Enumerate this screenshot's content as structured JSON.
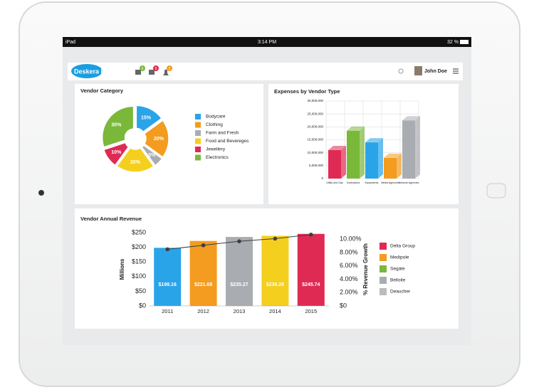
{
  "status_bar": {
    "device": "iPad",
    "time": "3:14 PM",
    "battery": "32 %"
  },
  "header": {
    "logo": "Deskera ERP",
    "badges": [
      "6",
      "5",
      "2"
    ],
    "user": "John Doe"
  },
  "chart_data": [
    {
      "type": "pie",
      "title": "Vendor Category",
      "categories": [
        "Bodycare",
        "Clothing",
        "Farm and Fresh",
        "Food and Bevereges",
        "Jewellery",
        "Electronics"
      ],
      "values": [
        15,
        20,
        5,
        20,
        10,
        30
      ],
      "value_labels": [
        "15%",
        "20%",
        "5%",
        "20%",
        "10%",
        "30%"
      ],
      "colors": [
        "#2aa4e8",
        "#f39c1f",
        "#a9adb2",
        "#f5cf1e",
        "#df2a54",
        "#7ab83a"
      ],
      "legend": "right"
    },
    {
      "type": "bar3d",
      "title": "Expenses by Vendor Type",
      "categories": [
        "Utility and Gas",
        "Contractors",
        "Equipments",
        "Media Agencies",
        "Network Agencies"
      ],
      "values": [
        11000000,
        18500000,
        14000000,
        8000000,
        22500000
      ],
      "colors": [
        "#df2a54",
        "#7ab83a",
        "#2aa4e8",
        "#f39c1f",
        "#a9adb2"
      ],
      "ylim": [
        0,
        30000000
      ],
      "yticks": [
        0,
        {
          "value": 5000000,
          "label": "5,000,000"
        },
        {
          "value": 10000000,
          "label": "10,000,000"
        },
        {
          "value": 15000000,
          "label": "15,000,000"
        },
        {
          "value": 20000000,
          "label": "20,000,000"
        },
        {
          "value": 25000000,
          "label": "25,000,000"
        },
        {
          "value": 30000000,
          "label": "30,000,000"
        }
      ],
      "grid": true
    },
    {
      "type": "combo",
      "title": "Vendor Annual Revenue",
      "categories": [
        "2011",
        "2012",
        "2013",
        "2014",
        "2015"
      ],
      "values": [
        198.16,
        221.68,
        235.27,
        239.26,
        245.74
      ],
      "value_labels": [
        "$198.16",
        "$221.68",
        "$235.27",
        "$239.26",
        "$245.74"
      ],
      "colors": [
        "#2aa4e8",
        "#f39c1f",
        "#a9adb2",
        "#f5cf1e",
        "#df2a54"
      ],
      "ylim": [
        0,
        250
      ],
      "yticks": [
        {
          "value": 0,
          "label": "$0"
        },
        {
          "value": 50,
          "label": "$50"
        },
        {
          "value": 100,
          "label": "$100"
        },
        {
          "value": 150,
          "label": "$150"
        },
        {
          "value": 200,
          "label": "$200"
        },
        {
          "value": 250,
          "label": "$250"
        }
      ],
      "ylabel": "Millions",
      "line_values": [
        8.5,
        9.1,
        9.7,
        10.1,
        10.7
      ],
      "line_color": "#3a3f44",
      "line_axis": "y2",
      "y2lim": [
        0,
        11
      ],
      "y2ticks": [
        {
          "value": 0,
          "label": "$0"
        },
        {
          "value": 2,
          "label": "2.00%"
        },
        {
          "value": 4,
          "label": "4.00%"
        },
        {
          "value": 6,
          "label": "6.00%"
        },
        {
          "value": 8,
          "label": "8.00%"
        },
        {
          "value": 10,
          "label": "10.00%"
        }
      ],
      "y2label": "% Revenue Growth",
      "legend_items": [
        {
          "name": "Delta Group",
          "color": "#df2a54"
        },
        {
          "name": "Medipole",
          "color": "#f39c1f"
        },
        {
          "name": "Segate",
          "color": "#7ab83a"
        },
        {
          "name": "Belloite",
          "color": "#a9adb2"
        },
        {
          "name": "Deaucher",
          "color": "#b9bcc0"
        }
      ]
    }
  ]
}
